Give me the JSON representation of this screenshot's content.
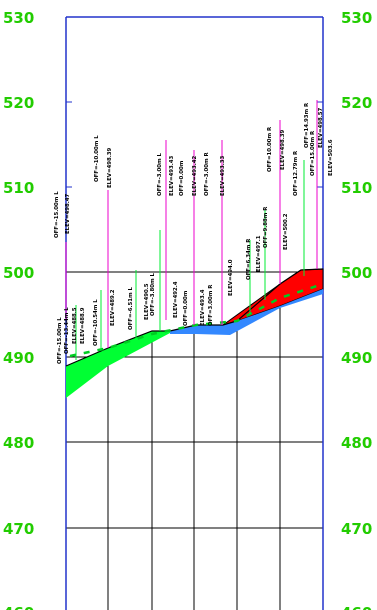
{
  "elevation_labels": [
    "530",
    "520",
    "510",
    "500",
    "490",
    "480",
    "470",
    "460"
  ],
  "annotations": [
    {
      "id": "a1",
      "text": "OFF=-15.00m  L"
    },
    {
      "id": "a2",
      "text": "ELEV=498.47"
    },
    {
      "id": "a3",
      "text": "OFF=-15.00m  L"
    },
    {
      "id": "a4",
      "text": "OFF=-13.44m  L"
    },
    {
      "id": "a5",
      "text": "ELEV=488.5"
    },
    {
      "id": "a6",
      "text": "ELEV=488.9"
    },
    {
      "id": "a7",
      "text": "OFF=-10.54m  L"
    },
    {
      "id": "a8",
      "text": "OFF=-10.00m  L"
    },
    {
      "id": "a9",
      "text": "ELEV=498.39"
    },
    {
      "id": "a10",
      "text": "ELEV=489.2"
    },
    {
      "id": "a11",
      "text": "OFF=-6.51m  L"
    },
    {
      "id": "a12",
      "text": "ELEV=490.5"
    },
    {
      "id": "a13",
      "text": "OFF=-3.80m  L"
    },
    {
      "id": "a14",
      "text": "OFF=-3.00m  L"
    },
    {
      "id": "a15",
      "text": "ELEV=493.43"
    },
    {
      "id": "a16",
      "text": "ELEV=492.4"
    },
    {
      "id": "a17",
      "text": "OFF=0.00m"
    },
    {
      "id": "a18",
      "text": "ELEV=493.42"
    },
    {
      "id": "a19",
      "text": "OFF=0.00m"
    },
    {
      "id": "a20",
      "text": "ELEV=493.4"
    },
    {
      "id": "a21",
      "text": "OFF=-3.00m  R"
    },
    {
      "id": "a22",
      "text": "OFF=3.00m  R"
    },
    {
      "id": "a23",
      "text": "ELEV=493.33"
    },
    {
      "id": "a24",
      "text": "ELEV=494.0"
    },
    {
      "id": "a25",
      "text": "OFF=6.34m  R"
    },
    {
      "id": "a26",
      "text": "ELEV=497.1"
    },
    {
      "id": "a27",
      "text": "OFF=10.00m  R"
    },
    {
      "id": "a28",
      "text": "OFF=9.88m  R"
    },
    {
      "id": "a29",
      "text": "ELEV=498.39"
    },
    {
      "id": "a30",
      "text": "ELEV=500.2"
    },
    {
      "id": "a31",
      "text": "OFF=12.79m  R"
    },
    {
      "id": "a32",
      "text": "OFF=14.93m  R"
    },
    {
      "id": "a33",
      "text": "OFF=15.00m  R"
    },
    {
      "id": "a34",
      "text": "ELEV=498.57"
    },
    {
      "id": "a35",
      "text": "ELEV=503.6"
    }
  ],
  "colors": {
    "frame": "#2233cc",
    "grid": "#000000",
    "labels": "#22cc00",
    "fill_area": "#00ff33",
    "cut_area": "#ff0000",
    "pavement": "#3388ff",
    "leader_existing": "#ee00cc",
    "leader_design": "#00ee33"
  }
}
